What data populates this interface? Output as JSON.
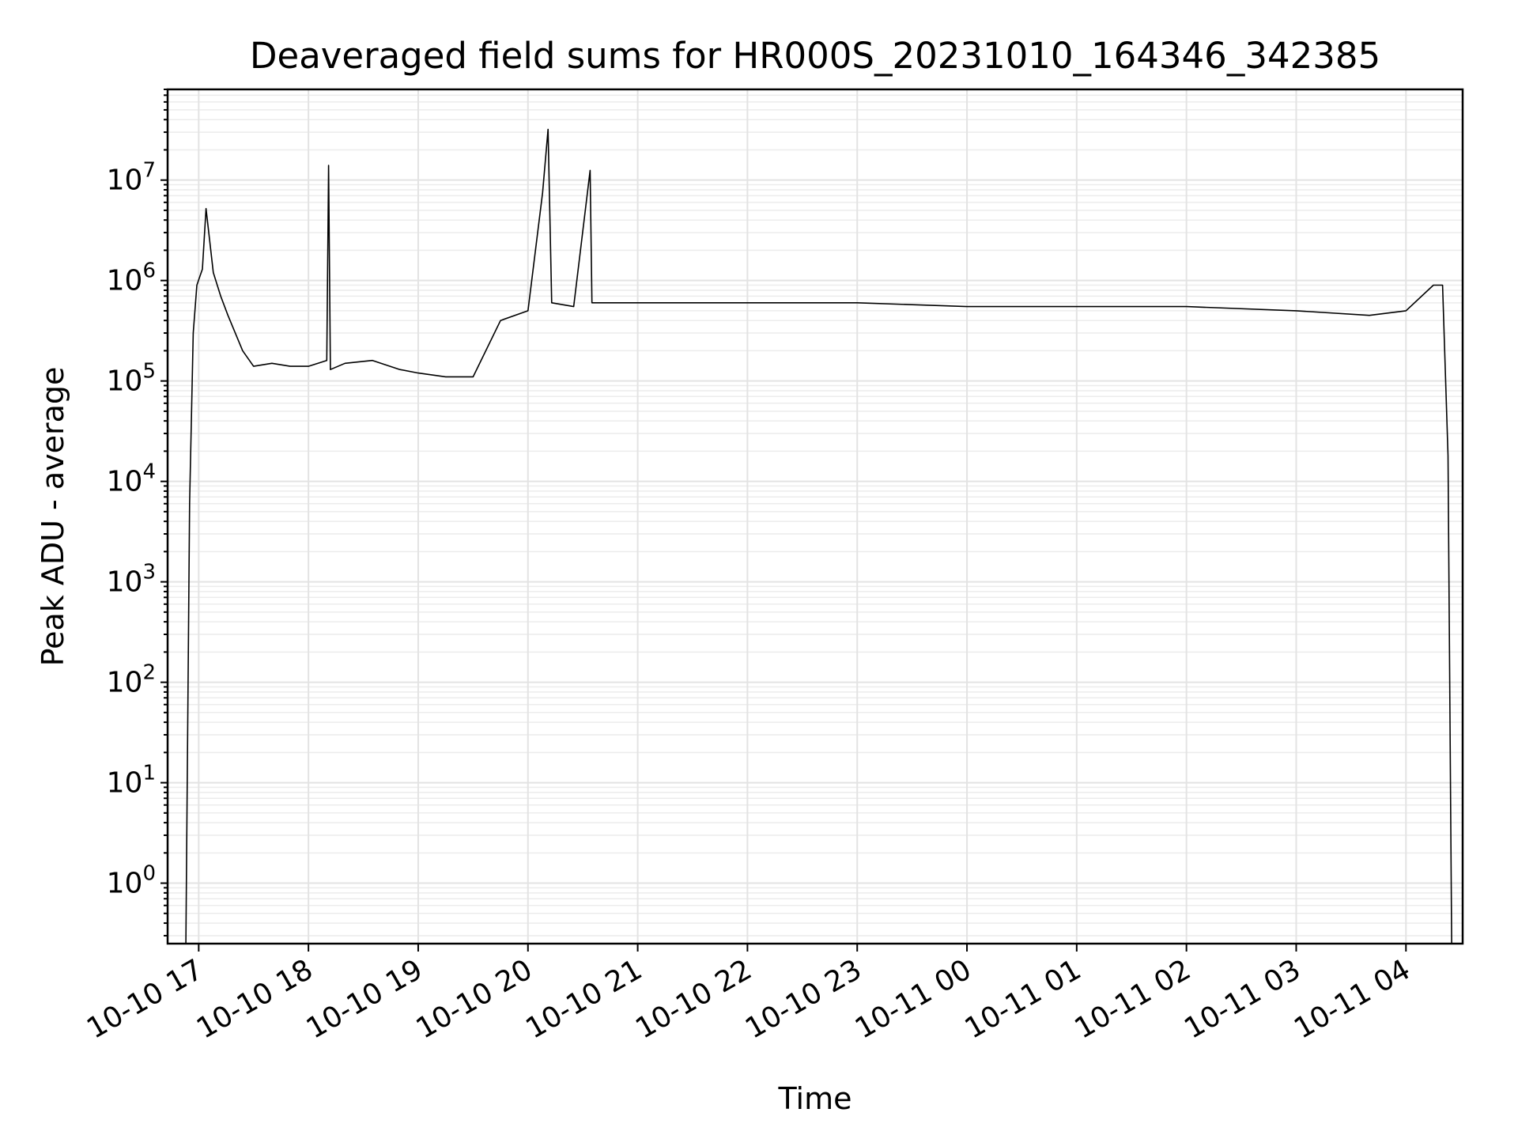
{
  "chart_data": {
    "type": "line",
    "title": "Deaveraged field sums for HR000S_20231010_164346_342385",
    "xlabel": "Time",
    "ylabel": "Peak ADU - average",
    "yscale": "log",
    "xlim": [
      "2023-10-10 16:43",
      "2023-10-11 04:31"
    ],
    "ylim": [
      0.25,
      80000000
    ],
    "grid": "major and minor",
    "x_ticks": [
      "10-10 17",
      "10-10 18",
      "10-10 19",
      "10-10 20",
      "10-10 21",
      "10-10 22",
      "10-10 23",
      "10-11 00",
      "10-11 01",
      "10-11 02",
      "10-11 03",
      "10-11 04"
    ],
    "y_ticks": [
      {
        "value": 1,
        "base": "10",
        "exp": "0"
      },
      {
        "value": 10,
        "base": "10",
        "exp": "1"
      },
      {
        "value": 100,
        "base": "10",
        "exp": "2"
      },
      {
        "value": 1000,
        "base": "10",
        "exp": "3"
      },
      {
        "value": 10000,
        "base": "10",
        "exp": "4"
      },
      {
        "value": 100000,
        "base": "10",
        "exp": "5"
      },
      {
        "value": 1000000,
        "base": "10",
        "exp": "6"
      },
      {
        "value": 10000000,
        "base": "10",
        "exp": "7"
      }
    ],
    "series": [
      {
        "color": "#000000",
        "x": [
          "2023-10-10 16:53",
          "2023-10-10 16:55",
          "2023-10-10 16:57",
          "2023-10-10 16:59",
          "2023-10-10 17:02",
          "2023-10-10 17:04",
          "2023-10-10 17:08",
          "2023-10-10 17:12",
          "2023-10-10 17:16",
          "2023-10-10 17:20",
          "2023-10-10 17:24",
          "2023-10-10 17:30",
          "2023-10-10 17:40",
          "2023-10-10 17:50",
          "2023-10-10 18:00",
          "2023-10-10 18:10",
          "2023-10-10 18:11",
          "2023-10-10 18:12",
          "2023-10-10 18:20",
          "2023-10-10 18:35",
          "2023-10-10 18:50",
          "2023-10-10 19:00",
          "2023-10-10 19:15",
          "2023-10-10 19:30",
          "2023-10-10 19:45",
          "2023-10-10 20:00",
          "2023-10-10 20:08",
          "2023-10-10 20:11",
          "2023-10-10 20:13",
          "2023-10-10 20:25",
          "2023-10-10 20:34",
          "2023-10-10 20:35",
          "2023-10-10 20:45",
          "2023-10-10 21:00",
          "2023-10-10 22:00",
          "2023-10-10 23:00",
          "2023-10-11 00:00",
          "2023-10-11 01:00",
          "2023-10-11 02:00",
          "2023-10-11 03:00",
          "2023-10-11 03:40",
          "2023-10-11 04:00",
          "2023-10-11 04:15",
          "2023-10-11 04:20",
          "2023-10-11 04:23",
          "2023-10-11 04:25"
        ],
        "y": [
          0.25,
          6000,
          300000,
          900000,
          1300000,
          5200000,
          1200000,
          700000,
          450000,
          300000,
          200000,
          140000,
          150000,
          140000,
          140000,
          160000,
          14000000,
          130000,
          150000,
          160000,
          130000,
          120000,
          110000,
          110000,
          400000,
          500000,
          7500000,
          32000000,
          600000,
          550000,
          12500000,
          600000,
          600000,
          600000,
          600000,
          600000,
          550000,
          550000,
          550000,
          500000,
          450000,
          500000,
          900000,
          900000,
          18000,
          0.25
        ]
      }
    ]
  }
}
